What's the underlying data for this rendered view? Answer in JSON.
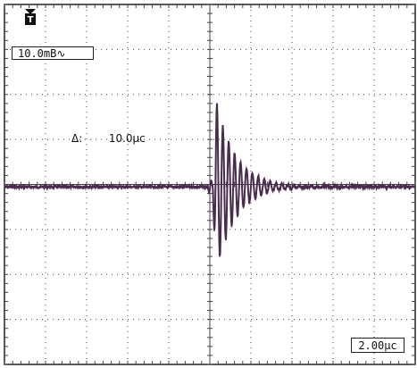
{
  "scope": {
    "trigger_marker_icon": "trigger-T-icon",
    "volts_per_div": "10.0mB∿",
    "delta_symbol": "Δ:",
    "delta_value": "10.0μc",
    "time_per_div": "2.00μc",
    "colors": {
      "trace": "#4a2a4e",
      "grid": "#444444",
      "background": "#ffffff"
    }
  }
}
